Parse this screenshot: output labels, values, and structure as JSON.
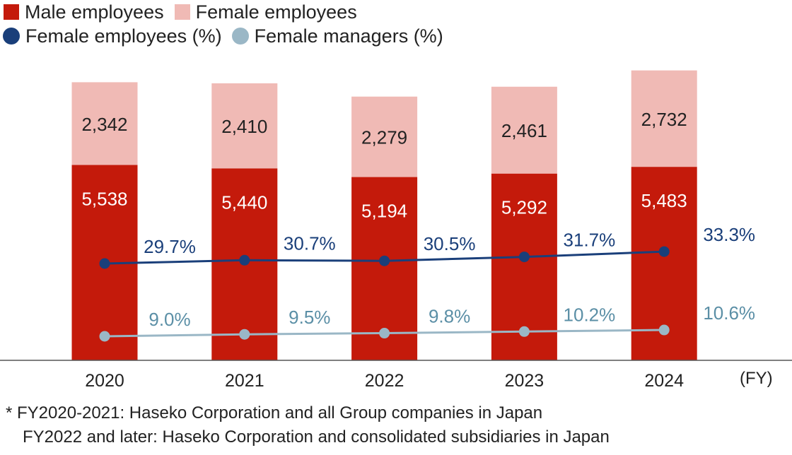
{
  "legend": {
    "male": "Male employees",
    "female": "Female employees",
    "female_pct": "Female employees (%)",
    "managers_pct": "Female managers (%)"
  },
  "colors": {
    "male": "#c41a0b",
    "female": "#f0bab5",
    "female_pct": "#1a3f7a",
    "managers_pct": "#9ab7c6",
    "managers_pct_text": "#5b8fa6"
  },
  "x_unit": "(FY)",
  "footnote": {
    "line1": "* FY2020-2021: Haseko Corporation and all Group companies in Japan",
    "line2": "FY2022 and later: Haseko Corporation and consolidated subsidiaries in Japan"
  },
  "chart_data": {
    "type": "bar",
    "stacked": true,
    "categories": [
      "2020",
      "2021",
      "2022",
      "2023",
      "2024"
    ],
    "series": [
      {
        "name": "Male employees",
        "values": [
          5538,
          5440,
          5194,
          5292,
          5483
        ],
        "labels": [
          "5,538",
          "5,440",
          "5,194",
          "5,292",
          "5,483"
        ]
      },
      {
        "name": "Female employees",
        "values": [
          2342,
          2410,
          2279,
          2461,
          2732
        ],
        "labels": [
          "2,342",
          "2,410",
          "2,279",
          "2,461",
          "2,732"
        ]
      }
    ],
    "lines": [
      {
        "name": "Female employees (%)",
        "values": [
          29.7,
          30.7,
          30.5,
          31.7,
          33.3
        ],
        "labels": [
          "29.7%",
          "30.7%",
          "30.5%",
          "31.7%",
          "33.3%"
        ]
      },
      {
        "name": "Female managers (%)",
        "values": [
          9.0,
          9.5,
          9.8,
          10.2,
          10.6
        ],
        "labels": [
          "9.0%",
          "9.5%",
          "9.8%",
          "10.2%",
          "10.6%"
        ]
      }
    ]
  }
}
